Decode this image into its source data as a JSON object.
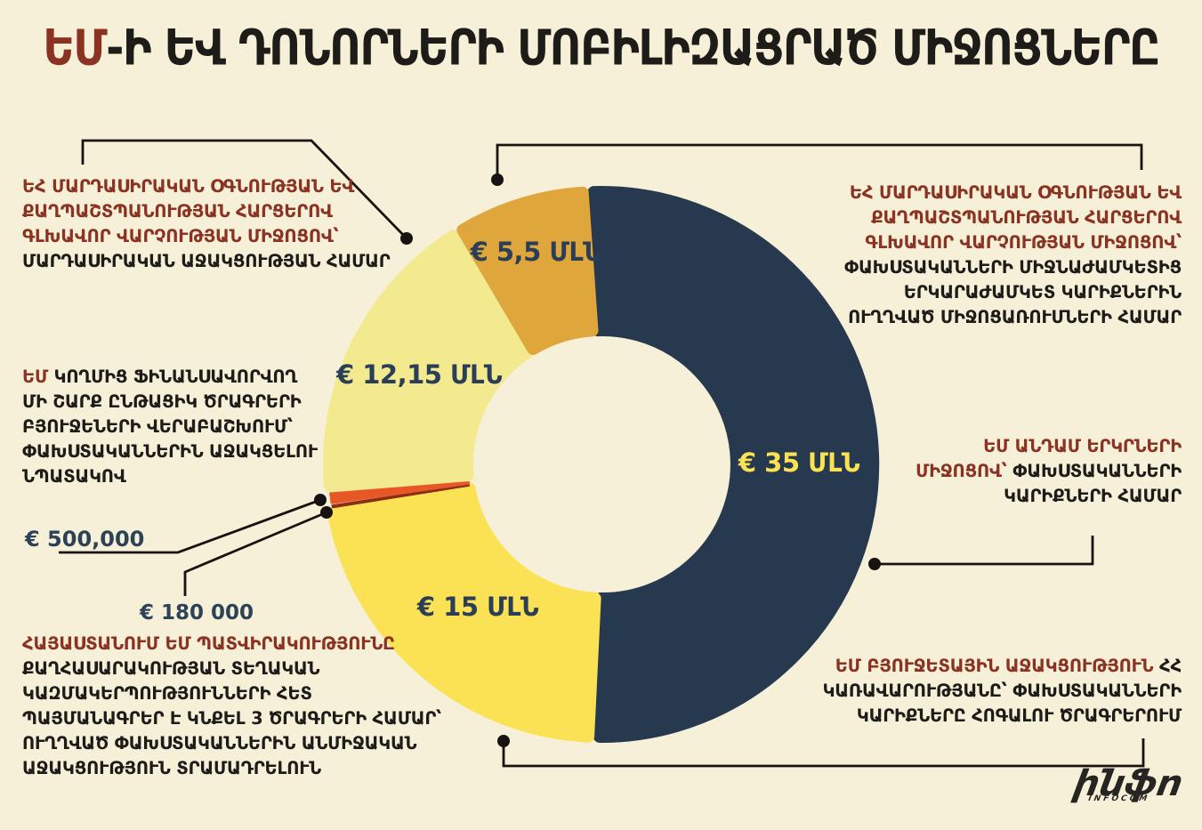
{
  "palette": {
    "background": "#F7F0D9",
    "red_text": "#8A3323",
    "black_text": "#1D1C18",
    "euro_label": "#2B4257",
    "connector_line": "#161310"
  },
  "header": {
    "title_highlight": "ԵՄ",
    "title_rest": "-Ի ԵՎ ԴՈՆՈՐՆԵՐԻ ՄՈԲԻԼԻԶԱՑՐԱԾ ՄԻՋՈՑՆԵՐԸ"
  },
  "chart_data": {
    "type": "pie",
    "subtype": "donut",
    "title": "ԵՄ-Ի ԵՎ ԴՈՆՈՐՆԵՐԻ ՄՈԲԻԼԻԶԱՑՐԱԾ ՄԻՋՈՑՆԵՐԸ",
    "unit": "EUR (millions)",
    "start_angle_deg": -92.8,
    "direction": "clockwise",
    "segments": [
      {
        "id": "eu-member-states",
        "value": 35,
        "display": "€ 35 ՄԼՆ",
        "color": "#27394E",
        "label_color": "#FBE254"
      },
      {
        "id": "eu-budget-support",
        "value": 15,
        "display": "€ 15 ՄԼՆ",
        "color": "#FBE254",
        "label_color": "#2B3E58"
      },
      {
        "id": "eu-delegation-contracts",
        "value": 0.18,
        "display": "",
        "amount_label": "€ 180 000",
        "color": "#8A2F15",
        "label_color": ""
      },
      {
        "id": "eu-programme-reallocation",
        "value": 0.5,
        "display": "",
        "amount_label": "€ 500,000",
        "color": "#E85726",
        "label_color": ""
      },
      {
        "id": "echo-humanitarian-assistance",
        "value": 12.15,
        "display": "€ 12,15 ՄԼՆ",
        "color": "#F3EA90",
        "label_color": "#2B3E58"
      },
      {
        "id": "echo-mid-long-term",
        "value": 5.5,
        "display": "€ 5,5 ՄԼՆ",
        "color": "#DFA63C",
        "label_color": "#2B3E58"
      }
    ]
  },
  "euro_labels": {
    "e500k": "€ 500,000",
    "e180k": "€ 180 000"
  },
  "blocks": {
    "top_left": [
      [
        {
          "t": "ԵՀ ՄԱՐԴԱՍԻՐԱԿԱՆ ՕԳՆՈՒԹՅԱՆ ԵՎ",
          "c": "red"
        }
      ],
      [
        {
          "t": "ՔԱՂՊԱՇՏՊԱՆՈՒԹՅԱՆ ՀԱՐՑԵՐՈՎ",
          "c": "red"
        }
      ],
      [
        {
          "t": "ԳԼԽԱՎՈՐ ՎԱՐՉՈՒԹՅԱՆ ՄԻՋՈՑՈՎ՝",
          "c": "red"
        }
      ],
      [
        {
          "t": "ՄԱՐԴԱՍԻՐԱԿԱՆ ԱՋԱԿՑՈՒԹՅԱՆ ՀԱՄԱՐ",
          "c": "black"
        }
      ]
    ],
    "left_middle": [
      [
        {
          "t": "ԵՄ",
          "c": "red"
        },
        {
          "t": " ԿՈՂՄԻՑ ՖԻՆԱՆՍԱՎՈՐՎՈՂ",
          "c": "black"
        }
      ],
      [
        {
          "t": "ՄԻ ՇԱՐՔ  ԸՆԹԱՑԻԿ ԾՐԱԳՐԵՐԻ",
          "c": "black"
        }
      ],
      [
        {
          "t": "ԲՅՈՒՋԵՆԵՐԻ ՎԵՐԱԲԱՇԽՈՒՄ՝",
          "c": "black"
        }
      ],
      [
        {
          "t": "ՓԱԽՍՏԱԿԱՆՆԵՐԻՆ ԱՋԱԿՑԵԼՈՒ",
          "c": "black"
        }
      ],
      [
        {
          "t": "ՆՊԱՏԱԿՈՎ",
          "c": "black"
        }
      ]
    ],
    "bottom_left": [
      [
        {
          "t": "ՀԱՅԱՍՏԱՆՈՒՄ ԵՄ ՊԱՏՎԻՐԱԿՈՒԹՅՈՒՆԸ",
          "c": "red"
        }
      ],
      [
        {
          "t": "ՔԱՂՀԱՍԱՐԱԿՈՒԹՅԱՆ ՏԵՂԱԿԱՆ",
          "c": "black"
        }
      ],
      [
        {
          "t": "ԿԱԶՄԱԿԵՐՊՈՒԹՅՈՒՆՆԵՐԻ ՀԵՏ",
          "c": "black"
        }
      ],
      [
        {
          "t": "ՊԱՅՄԱՆԱԳՐԵՐ Է ԿՆՔԵԼ 3 ԾՐԱԳՐԵՐԻ ՀԱՄԱՐ՝",
          "c": "black"
        }
      ],
      [
        {
          "t": "ՈՒՂՂՎԱԾ ՓԱԽՍՏԱԿԱՆՆԵՐԻՆ ԱՆՄԻՋԱԿԱՆ",
          "c": "black"
        }
      ],
      [
        {
          "t": "ԱՋԱԿՑՈՒԹՅՈՒՆ ՏՐԱՄԱԴՐԵԼՈՒՆ",
          "c": "black"
        }
      ]
    ],
    "top_right": [
      [
        {
          "t": "ԵՀ ՄԱՐԴԱՍԻՐԱԿԱՆ ՕԳՆՈՒԹՅԱՆ ԵՎ",
          "c": "red"
        }
      ],
      [
        {
          "t": "ՔԱՂՊԱՇՏՊԱՆՈՒԹՅԱՆ ՀԱՐՑԵՐՈՎ",
          "c": "red"
        }
      ],
      [
        {
          "t": "ԳԼԽԱՎՈՐ ՎԱՐՉՈՒԹՅԱՆ ՄԻՋՈՑՈՎ՝",
          "c": "red"
        }
      ],
      [
        {
          "t": "ՓԱԽՍՏԱԿԱՆՆԵՐԻ ՄԻՋՆԱԺԱՄԿԵՏԻՑ",
          "c": "black"
        }
      ],
      [
        {
          "t": "ԵՐԿԱՐԱԺԱՄԿԵՏ ԿԱՐԻՔՆԵՐԻՆ",
          "c": "black"
        }
      ],
      [
        {
          "t": "ՈՒՂՂՎԱԾ ՄԻՋՈՑԱՌՈՒՄՆԵՐԻ ՀԱՄԱՐ",
          "c": "black"
        }
      ]
    ],
    "right_middle": [
      [
        {
          "t": "ԵՄ ԱՆԴԱՄ ԵՐԿՐՆԵՐԻ",
          "c": "red"
        }
      ],
      [
        {
          "t": "ՄԻՋՈՑՈՎ՝ ",
          "c": "red"
        },
        {
          "t": "ՓԱԽՍՏԱԿԱՆՆԵՐԻ",
          "c": "black"
        }
      ],
      [
        {
          "t": "ԿԱՐԻՔՆԵՐԻ ՀԱՄԱՐ",
          "c": "black"
        }
      ]
    ],
    "bottom_right": [
      [
        {
          "t": "ԵՄ ԲՅՈՒՋԵՏԱՅԻՆ ԱՋԱԿՑՈՒԹՅՈՒՆ ",
          "c": "red"
        },
        {
          "t": "ՀՀ",
          "c": "black"
        }
      ],
      [
        {
          "t": "ԿԱՌԱՎԱՐՈՒԹՅԱՆԸ՝ ՓԱԽՍՏԱԿԱՆՆԵՐԻ",
          "c": "black"
        }
      ],
      [
        {
          "t": "ԿԱՐԻՔՆԵՐԸ ՀՈԳԱԼՈՒ ԾՐԱԳՐԵՐՈՒՄ",
          "c": "black"
        }
      ]
    ]
  },
  "logo": {
    "text": "ինֆո",
    "subtext": "INFOCOM"
  }
}
